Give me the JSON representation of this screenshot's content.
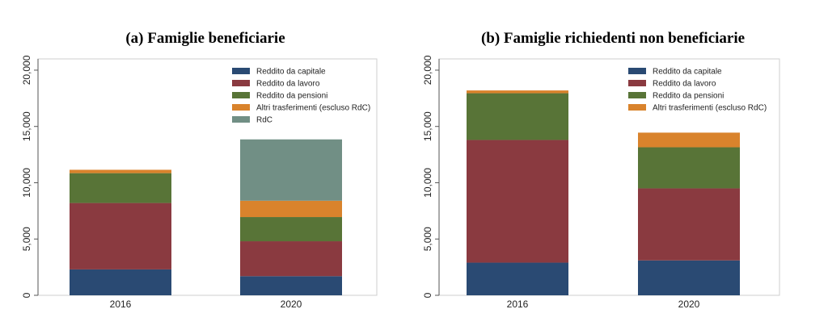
{
  "chart_data": [
    {
      "type": "bar",
      "stacked": true,
      "title": "(a) Famiglie beneficiarie",
      "xlabel": "",
      "ylabel": "",
      "ylim": [
        0,
        21000
      ],
      "yticks": [
        0,
        5000,
        10000,
        15000,
        20000
      ],
      "ytick_labels": [
        "0",
        "5,000",
        "10,000",
        "15,000",
        "20,000"
      ],
      "categories": [
        "2016",
        "2020"
      ],
      "legend_position": "top-right",
      "series": [
        {
          "name": "Reddito da capitale",
          "color": "#2a4a73",
          "values": [
            2300,
            1700
          ]
        },
        {
          "name": "Reddito da lavoro",
          "color": "#8a3a40",
          "values": [
            5900,
            3100
          ]
        },
        {
          "name": "Reddito da pensioni",
          "color": "#587437",
          "values": [
            2650,
            2150
          ]
        },
        {
          "name": "Altri trasferimenti (escluso RdC)",
          "color": "#d9832c",
          "values": [
            300,
            1450
          ]
        },
        {
          "name": "RdC",
          "color": "#718f85",
          "values": [
            0,
            5450
          ]
        }
      ]
    },
    {
      "type": "bar",
      "stacked": true,
      "title": "(b) Famiglie richiedenti non beneficiarie",
      "xlabel": "",
      "ylabel": "",
      "ylim": [
        0,
        21000
      ],
      "yticks": [
        0,
        5000,
        10000,
        15000,
        20000
      ],
      "ytick_labels": [
        "0",
        "5,000",
        "10,000",
        "15,000",
        "20,000"
      ],
      "categories": [
        "2016",
        "2020"
      ],
      "legend_position": "top-right",
      "series": [
        {
          "name": "Reddito da capitale",
          "color": "#2a4a73",
          "values": [
            2900,
            3100
          ]
        },
        {
          "name": "Reddito da lavoro",
          "color": "#8a3a40",
          "values": [
            10900,
            6400
          ]
        },
        {
          "name": "Reddito da pensioni",
          "color": "#587437",
          "values": [
            4150,
            3650
          ]
        },
        {
          "name": "Altri trasferimenti (escluso RdC)",
          "color": "#d9832c",
          "values": [
            250,
            1300
          ]
        }
      ]
    }
  ]
}
